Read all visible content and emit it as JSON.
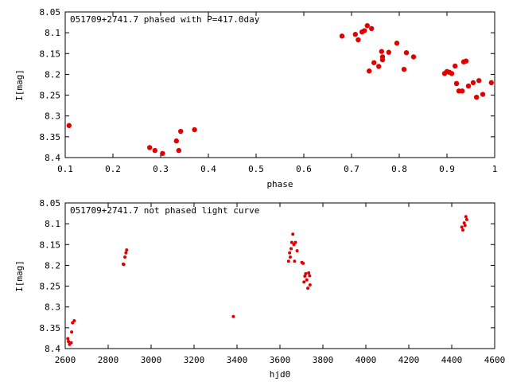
{
  "colors": {
    "marker": "#e00000"
  },
  "chart_data": [
    {
      "type": "scatter",
      "title": "051709+2741.7 phased with P=417.0day",
      "xlabel": "phase",
      "ylabel": "I[mag]",
      "xlim": [
        0.1,
        1.0
      ],
      "ylim": [
        8.4,
        8.05
      ],
      "y_inverted": true,
      "grid": false,
      "x_ticks": [
        "0.1",
        "0.2",
        "0.3",
        "0.4",
        "0.5",
        "0.6",
        "0.7",
        "0.8",
        "0.9",
        "1"
      ],
      "y_ticks": [
        "8.05",
        "8.1",
        "8.15",
        "8.2",
        "8.25",
        "8.3",
        "8.35",
        "8.4"
      ],
      "marker": "filled-circle",
      "points": [
        [
          0.108,
          8.323
        ],
        [
          0.277,
          8.376
        ],
        [
          0.288,
          8.383
        ],
        [
          0.304,
          8.39
        ],
        [
          0.333,
          8.36
        ],
        [
          0.338,
          8.383
        ],
        [
          0.342,
          8.337
        ],
        [
          0.371,
          8.333
        ],
        [
          0.68,
          8.108
        ],
        [
          0.708,
          8.104
        ],
        [
          0.714,
          8.117
        ],
        [
          0.722,
          8.098
        ],
        [
          0.727,
          8.095
        ],
        [
          0.733,
          8.083
        ],
        [
          0.737,
          8.192
        ],
        [
          0.742,
          8.09
        ],
        [
          0.747,
          8.172
        ],
        [
          0.757,
          8.181
        ],
        [
          0.763,
          8.145
        ],
        [
          0.765,
          8.158
        ],
        [
          0.765,
          8.165
        ],
        [
          0.778,
          8.147
        ],
        [
          0.795,
          8.125
        ],
        [
          0.81,
          8.188
        ],
        [
          0.815,
          8.148
        ],
        [
          0.83,
          8.158
        ],
        [
          0.895,
          8.198
        ],
        [
          0.9,
          8.193
        ],
        [
          0.905,
          8.195
        ],
        [
          0.91,
          8.198
        ],
        [
          0.917,
          8.18
        ],
        [
          0.92,
          8.222
        ],
        [
          0.925,
          8.24
        ],
        [
          0.932,
          8.24
        ],
        [
          0.935,
          8.17
        ],
        [
          0.94,
          8.168
        ],
        [
          0.945,
          8.228
        ],
        [
          0.955,
          8.22
        ],
        [
          0.962,
          8.255
        ],
        [
          0.967,
          8.215
        ],
        [
          0.975,
          8.248
        ],
        [
          0.993,
          8.22
        ]
      ]
    },
    {
      "type": "scatter",
      "title": "051709+2741.7 not phased light curve",
      "xlabel": "hjd0",
      "ylabel": "I[mag]",
      "xlim": [
        2600,
        4600
      ],
      "ylim": [
        8.4,
        8.05
      ],
      "y_inverted": true,
      "grid": false,
      "x_ticks": [
        "2600",
        "2800",
        "3000",
        "3200",
        "3400",
        "3600",
        "3800",
        "4000",
        "4200",
        "4400",
        "4600"
      ],
      "y_ticks": [
        "8.05",
        "8.1",
        "8.15",
        "8.2",
        "8.25",
        "8.3",
        "8.35",
        "8.4"
      ],
      "marker": "small-dot",
      "points": [
        [
          2612,
          8.376
        ],
        [
          2615,
          8.383
        ],
        [
          2620,
          8.39
        ],
        [
          2628,
          8.386
        ],
        [
          2630,
          8.36
        ],
        [
          2634,
          8.338
        ],
        [
          2642,
          8.333
        ],
        [
          2870,
          8.197
        ],
        [
          2873,
          8.198
        ],
        [
          2878,
          8.18
        ],
        [
          2883,
          8.17
        ],
        [
          2886,
          8.163
        ],
        [
          3383,
          8.323
        ],
        [
          3640,
          8.19
        ],
        [
          3645,
          8.17
        ],
        [
          3648,
          8.18
        ],
        [
          3652,
          8.16
        ],
        [
          3655,
          8.145
        ],
        [
          3660,
          8.125
        ],
        [
          3665,
          8.15
        ],
        [
          3668,
          8.19
        ],
        [
          3672,
          8.145
        ],
        [
          3680,
          8.165
        ],
        [
          3702,
          8.193
        ],
        [
          3708,
          8.195
        ],
        [
          3712,
          8.24
        ],
        [
          3716,
          8.226
        ],
        [
          3720,
          8.22
        ],
        [
          3725,
          8.235
        ],
        [
          3730,
          8.255
        ],
        [
          3734,
          8.218
        ],
        [
          3738,
          8.225
        ],
        [
          3740,
          8.247
        ],
        [
          4447,
          8.108
        ],
        [
          4452,
          8.115
        ],
        [
          4458,
          8.098
        ],
        [
          4462,
          8.104
        ],
        [
          4466,
          8.083
        ],
        [
          4470,
          8.09
        ]
      ]
    }
  ]
}
